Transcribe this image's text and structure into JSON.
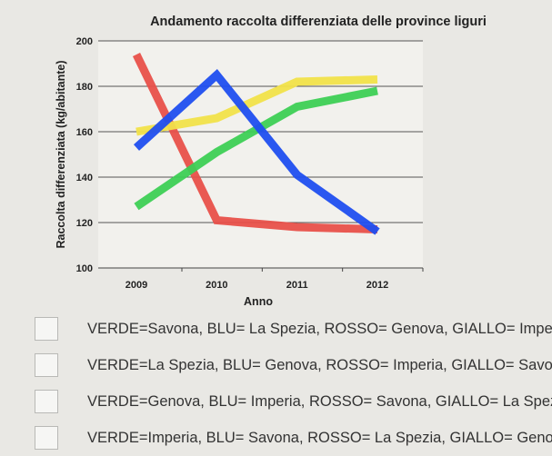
{
  "chart_data": {
    "type": "line",
    "title": "Andamento raccolta differenziata delle province liguri",
    "xlabel": "Anno",
    "ylabel": "Raccolta differenziata (kg/abitante)",
    "x": [
      2009,
      2010,
      2011,
      2012
    ],
    "x_ticks": [
      "2009",
      "2010",
      "2011",
      "2012"
    ],
    "y_ticks": [
      "100",
      "120",
      "140",
      "160",
      "180",
      "200"
    ],
    "ylim": [
      100,
      200
    ],
    "grid": "horizontal",
    "series": [
      {
        "color": "#e8504a",
        "points": [
          [
            2009,
            194
          ],
          [
            2010,
            121
          ],
          [
            2011,
            118
          ],
          [
            2012,
            117
          ]
        ]
      },
      {
        "color": "#f1e24a",
        "points": [
          [
            2009,
            160
          ],
          [
            2010,
            166
          ],
          [
            2011,
            182
          ],
          [
            2012,
            183
          ]
        ]
      },
      {
        "color": "#3dcf55",
        "points": [
          [
            2009,
            127
          ],
          [
            2010,
            151
          ],
          [
            2011,
            171
          ],
          [
            2012,
            178
          ]
        ]
      },
      {
        "color": "#1f4ef0",
        "points": [
          [
            2009,
            153
          ],
          [
            2010,
            185
          ],
          [
            2011,
            141
          ],
          [
            2012,
            116
          ]
        ]
      }
    ]
  },
  "options": [
    "VERDE=Savona, BLU= La Spezia, ROSSO= Genova, GIALLO= Imperia",
    "VERDE=La Spezia, BLU= Genova, ROSSO= Imperia, GIALLO= Savona",
    "VERDE=Genova, BLU= Imperia, ROSSO= Savona, GIALLO= La Spezia",
    "VERDE=Imperia, BLU= Savona, ROSSO= La Spezia, GIALLO= Genova"
  ]
}
